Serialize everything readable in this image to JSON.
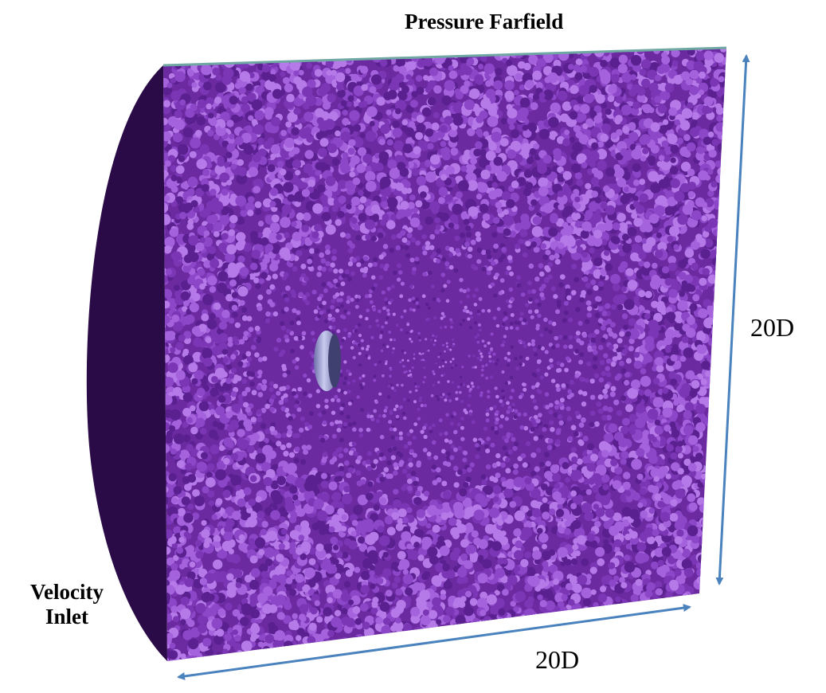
{
  "labels": {
    "top_boundary": "Pressure Farfield",
    "inlet_line1": "Velocity",
    "inlet_line2": "Inlet",
    "height_dimension": "20D",
    "length_dimension": "20D"
  },
  "colors": {
    "mesh_base": "#6b2aa0",
    "mesh_cell": "#9b58d6",
    "inlet_face": "#2b0b47",
    "farfield_edge": "#6fa7a3",
    "arrow": "#4a82bd",
    "body": "#8a8fc8"
  }
}
